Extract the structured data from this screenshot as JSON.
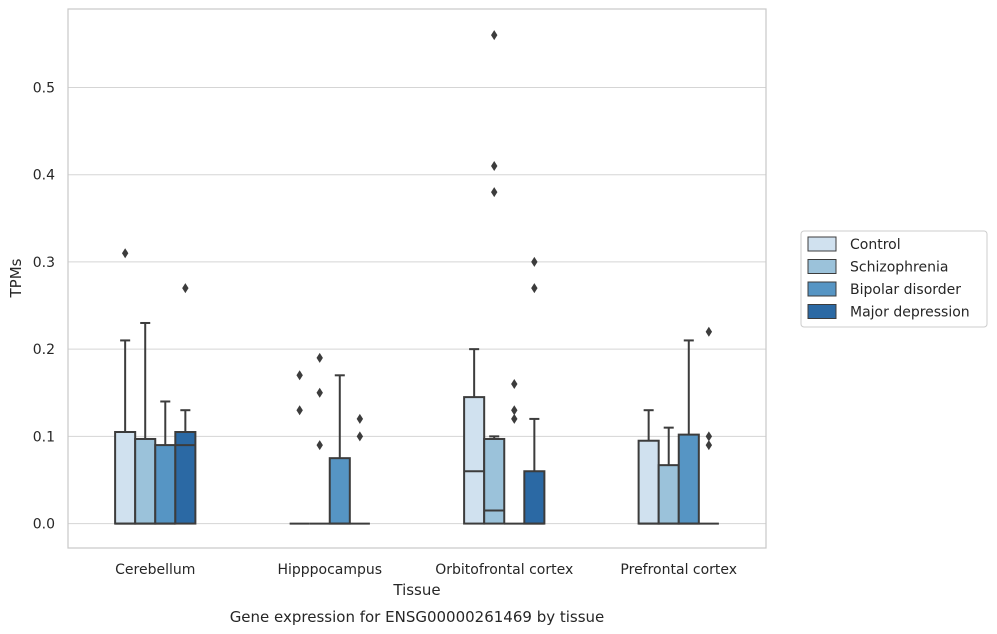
{
  "chart_data": {
    "type": "boxplot",
    "caption": "Gene expression for ENSG00000261469 by tissue",
    "xlabel": "Tissue",
    "ylabel": "TPMs",
    "ylim": [
      -0.028,
      0.59
    ],
    "yticks": [
      0.0,
      0.1,
      0.2,
      0.3,
      0.4,
      0.5
    ],
    "ytick_labels": [
      "0.0",
      "0.1",
      "0.2",
      "0.3",
      "0.4",
      "0.5"
    ],
    "grid": "horizontal",
    "legend_position": "right",
    "categories": [
      "Cerebellum",
      "Hipppocampus",
      "Orbitofrontal cortex",
      "Prefrontal cortex"
    ],
    "series": [
      {
        "name": "Control",
        "color": "#d0e1ef",
        "boxes": [
          {
            "q1": 0.0,
            "median": 0.0,
            "q3": 0.105,
            "whislo": 0.0,
            "whishi": 0.21,
            "fliers": [
              0.31
            ]
          },
          {
            "q1": 0.0,
            "median": 0.0,
            "q3": 0.0,
            "whislo": 0.0,
            "whishi": 0.0,
            "fliers": [
              0.17,
              0.13
            ]
          },
          {
            "q1": 0.0,
            "median": 0.06,
            "q3": 0.145,
            "whislo": 0.0,
            "whishi": 0.2,
            "fliers": []
          },
          {
            "q1": 0.0,
            "median": 0.0,
            "q3": 0.095,
            "whislo": 0.0,
            "whishi": 0.13,
            "fliers": []
          }
        ]
      },
      {
        "name": "Schizophrenia",
        "color": "#9bc2da",
        "boxes": [
          {
            "q1": 0.0,
            "median": 0.0,
            "q3": 0.097,
            "whislo": 0.0,
            "whishi": 0.23,
            "fliers": []
          },
          {
            "q1": 0.0,
            "median": 0.0,
            "q3": 0.0,
            "whislo": 0.0,
            "whishi": 0.0,
            "fliers": [
              0.19,
              0.15,
              0.09
            ]
          },
          {
            "q1": 0.0,
            "median": 0.015,
            "q3": 0.097,
            "whislo": 0.0,
            "whishi": 0.1,
            "fliers": [
              0.56,
              0.41,
              0.38
            ]
          },
          {
            "q1": 0.0,
            "median": 0.0,
            "q3": 0.067,
            "whislo": 0.0,
            "whishi": 0.11,
            "fliers": []
          }
        ]
      },
      {
        "name": "Bipolar disorder",
        "color": "#5695c4",
        "boxes": [
          {
            "q1": 0.0,
            "median": 0.0,
            "q3": 0.09,
            "whislo": 0.0,
            "whishi": 0.14,
            "fliers": []
          },
          {
            "q1": 0.0,
            "median": 0.0,
            "q3": 0.075,
            "whislo": 0.0,
            "whishi": 0.17,
            "fliers": []
          },
          {
            "q1": 0.0,
            "median": 0.0,
            "q3": 0.0,
            "whislo": 0.0,
            "whishi": 0.0,
            "fliers": [
              0.16,
              0.13,
              0.12
            ]
          },
          {
            "q1": 0.0,
            "median": 0.0,
            "q3": 0.102,
            "whislo": 0.0,
            "whishi": 0.21,
            "fliers": []
          }
        ]
      },
      {
        "name": "Major depression",
        "color": "#2b69a4",
        "boxes": [
          {
            "q1": 0.0,
            "median": 0.09,
            "q3": 0.105,
            "whislo": 0.0,
            "whishi": 0.13,
            "fliers": [
              0.27
            ]
          },
          {
            "q1": 0.0,
            "median": 0.0,
            "q3": 0.0,
            "whislo": 0.0,
            "whishi": 0.0,
            "fliers": [
              0.12,
              0.1
            ]
          },
          {
            "q1": 0.0,
            "median": 0.0,
            "q3": 0.06,
            "whislo": 0.0,
            "whishi": 0.12,
            "fliers": [
              0.3,
              0.27
            ]
          },
          {
            "q1": 0.0,
            "median": 0.0,
            "q3": 0.0,
            "whislo": 0.0,
            "whishi": 0.0,
            "fliers": [
              0.22,
              0.1,
              0.09
            ]
          }
        ]
      }
    ]
  },
  "colors": {
    "grid": "#d5d5d5",
    "frame": "#c8c8c8",
    "box_edge": "#3c3c3c"
  }
}
